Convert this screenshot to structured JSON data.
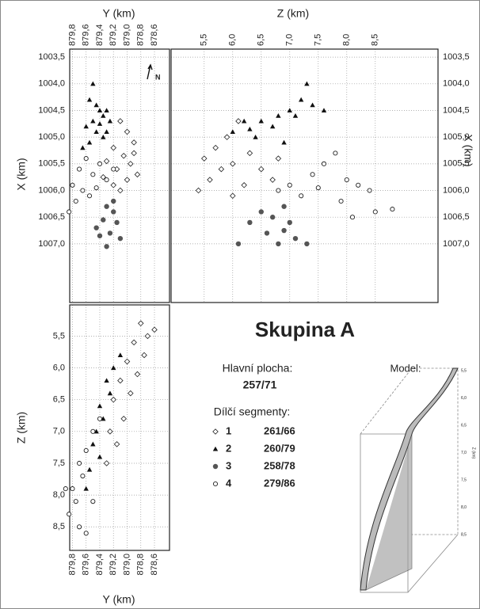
{
  "chart_data": [
    {
      "type": "scatter",
      "xlabel": "Y (km)",
      "ylabel": "X (km)",
      "north": "N",
      "xlim": [
        879.84,
        878.38
      ],
      "ylim": [
        1003.35,
        1008.1
      ],
      "xticks": [
        {
          "value": 879.8,
          "label": "879,8"
        },
        {
          "value": 879.6,
          "label": "879,6"
        },
        {
          "value": 879.4,
          "label": "879,4"
        },
        {
          "value": 879.2,
          "label": "879,2"
        },
        {
          "value": 879.0,
          "label": "879,0"
        },
        {
          "value": 878.8,
          "label": "878,8"
        },
        {
          "value": 878.6,
          "label": "878,6"
        }
      ],
      "yticks": [
        {
          "value": 1003.5,
          "label": "1003,5"
        },
        {
          "value": 1004.0,
          "label": "1004,0"
        },
        {
          "value": 1004.5,
          "label": "1004,5"
        },
        {
          "value": 1005.0,
          "label": "1005,0"
        },
        {
          "value": 1005.5,
          "label": "1005,5"
        },
        {
          "value": 1006.0,
          "label": "1006,0"
        },
        {
          "value": 1006.5,
          "label": "1006,5"
        },
        {
          "value": 1007.0,
          "label": "1007,0"
        }
      ],
      "grid": true,
      "series": [
        {
          "marker": "diamond",
          "x": [
            879.1,
            879.0,
            878.9,
            879.2,
            879.05,
            878.95,
            879.15,
            879.3,
            878.85,
            879.0,
            879.2,
            879.35,
            879.1,
            878.9
          ],
          "values": [
            1004.7,
            1004.9,
            1005.1,
            1005.2,
            1005.35,
            1005.5,
            1005.6,
            1005.45,
            1005.7,
            1005.8,
            1005.9,
            1005.75,
            1006.0,
            1005.3
          ]
        },
        {
          "marker": "triangle",
          "x": [
            879.5,
            879.55,
            879.45,
            879.4,
            879.35,
            879.3,
            879.5,
            879.6,
            879.25,
            879.45,
            879.35,
            879.55,
            879.4,
            879.3,
            879.65
          ],
          "values": [
            1004.0,
            1004.3,
            1004.4,
            1004.5,
            1004.6,
            1004.5,
            1004.7,
            1004.8,
            1004.7,
            1004.9,
            1005.0,
            1005.1,
            1004.75,
            1004.9,
            1005.2
          ]
        },
        {
          "marker": "dot",
          "x": [
            879.3,
            879.2,
            879.35,
            879.45,
            879.25,
            879.1,
            879.3,
            879.15,
            879.4,
            879.2
          ],
          "values": [
            1006.3,
            1006.4,
            1006.55,
            1006.7,
            1006.8,
            1006.9,
            1007.05,
            1006.6,
            1006.85,
            1006.2
          ]
        },
        {
          "marker": "ring",
          "x": [
            879.6,
            879.7,
            879.5,
            879.8,
            879.65,
            879.45,
            879.75,
            879.55,
            879.4,
            879.3,
            879.85,
            879.2
          ],
          "values": [
            1005.4,
            1005.6,
            1005.7,
            1005.9,
            1006.0,
            1005.95,
            1006.2,
            1006.1,
            1005.5,
            1005.8,
            1006.4,
            1005.6
          ]
        }
      ]
    },
    {
      "type": "scatter",
      "xlabel": "Z (km)",
      "ylabel": "X (km)",
      "xlim": [
        4.92,
        9.6
      ],
      "ylim": [
        1003.35,
        1008.1
      ],
      "xticks": [
        {
          "value": 5.5,
          "label": "5,5"
        },
        {
          "value": 6.0,
          "label": "6,0"
        },
        {
          "value": 6.5,
          "label": "6,5"
        },
        {
          "value": 7.0,
          "label": "7,0"
        },
        {
          "value": 7.5,
          "label": "7,5"
        },
        {
          "value": 8.0,
          "label": "8,0"
        },
        {
          "value": 8.5,
          "label": "8,5"
        }
      ],
      "yticks": [
        {
          "value": 1003.5,
          "label": "1003,5"
        },
        {
          "value": 1004.0,
          "label": "1004,0"
        },
        {
          "value": 1004.5,
          "label": "1004,5"
        },
        {
          "value": 1005.0,
          "label": "1005,0"
        },
        {
          "value": 1005.5,
          "label": "1005,5"
        },
        {
          "value": 1006.0,
          "label": "1006,0"
        },
        {
          "value": 1006.5,
          "label": "1006,5"
        },
        {
          "value": 1007.0,
          "label": "1007,0"
        }
      ],
      "grid": true,
      "series": [
        {
          "marker": "diamond",
          "x": [
            5.5,
            5.7,
            5.9,
            6.1,
            5.6,
            5.8,
            6.0,
            6.3,
            6.5,
            6.7,
            6.2,
            5.4,
            6.0,
            6.8
          ],
          "values": [
            1005.4,
            1005.2,
            1005.0,
            1004.7,
            1005.8,
            1005.6,
            1005.5,
            1005.3,
            1005.6,
            1005.8,
            1005.9,
            1006.0,
            1006.1,
            1005.4
          ]
        },
        {
          "marker": "triangle",
          "x": [
            7.3,
            7.2,
            7.0,
            6.8,
            6.5,
            6.2,
            6.0,
            6.4,
            6.7,
            7.1,
            7.4,
            6.9,
            7.6,
            6.3
          ],
          "values": [
            1004.0,
            1004.3,
            1004.5,
            1004.6,
            1004.7,
            1004.7,
            1004.9,
            1005.0,
            1004.8,
            1004.6,
            1004.4,
            1005.1,
            1004.5,
            1004.85
          ]
        },
        {
          "marker": "dot",
          "x": [
            6.5,
            6.7,
            6.9,
            7.0,
            6.3,
            6.6,
            7.1,
            6.8,
            6.1,
            7.3,
            6.9
          ],
          "values": [
            1006.4,
            1006.5,
            1006.3,
            1006.6,
            1006.6,
            1006.8,
            1006.9,
            1007.0,
            1007.0,
            1007.0,
            1006.75
          ]
        },
        {
          "marker": "ring",
          "x": [
            7.0,
            7.4,
            7.6,
            7.8,
            8.0,
            8.2,
            8.4,
            7.9,
            8.5,
            8.8,
            8.1,
            6.8,
            7.2,
            7.5
          ],
          "values": [
            1005.9,
            1005.7,
            1005.5,
            1005.3,
            1005.8,
            1005.9,
            1006.0,
            1006.2,
            1006.4,
            1006.35,
            1006.5,
            1006.0,
            1006.1,
            1005.95
          ]
        }
      ]
    },
    {
      "type": "scatter",
      "xlabel": "Y (km)",
      "ylabel": "Z (km)",
      "xlim": [
        879.84,
        878.38
      ],
      "ylim": [
        5.01,
        8.87
      ],
      "xticks": [
        {
          "value": 879.8,
          "label": "879,8"
        },
        {
          "value": 879.6,
          "label": "879,6"
        },
        {
          "value": 879.4,
          "label": "879,4"
        },
        {
          "value": 879.2,
          "label": "879,2"
        },
        {
          "value": 879.0,
          "label": "879,0"
        },
        {
          "value": 878.8,
          "label": "878,8"
        },
        {
          "value": 878.6,
          "label": "878,6"
        }
      ],
      "yticks": [
        {
          "value": 5.5,
          "label": "5,5"
        },
        {
          "value": 6.0,
          "label": "6,0"
        },
        {
          "value": 6.5,
          "label": "6,5"
        },
        {
          "value": 7.0,
          "label": "7,0"
        },
        {
          "value": 7.5,
          "label": "7,5"
        },
        {
          "value": 8.0,
          "label": "8,0"
        },
        {
          "value": 8.5,
          "label": "8,5"
        }
      ],
      "grid": true,
      "series": [
        {
          "marker": "diamond",
          "x": [
            878.8,
            878.7,
            878.9,
            878.75,
            879.0,
            878.85,
            879.1,
            878.95,
            879.2,
            879.05,
            879.25,
            879.15,
            879.3,
            878.6
          ],
          "values": [
            5.3,
            5.5,
            5.6,
            5.8,
            5.9,
            6.1,
            6.2,
            6.4,
            6.5,
            6.8,
            7.0,
            7.2,
            7.5,
            5.4
          ]
        },
        {
          "marker": "triangle",
          "x": [
            879.1,
            879.2,
            879.3,
            879.25,
            879.4,
            879.35,
            879.45,
            879.5,
            879.4,
            879.55,
            879.6
          ],
          "values": [
            5.8,
            6.0,
            6.2,
            6.4,
            6.6,
            6.8,
            7.0,
            7.2,
            7.4,
            7.6,
            7.9
          ]
        },
        {
          "marker": "ring",
          "x": [
            879.4,
            879.5,
            879.6,
            879.7,
            879.65,
            879.8,
            879.9,
            879.75,
            879.85,
            879.7,
            879.6,
            879.5
          ],
          "values": [
            6.8,
            7.0,
            7.3,
            7.5,
            7.7,
            7.9,
            7.9,
            8.1,
            8.3,
            8.5,
            8.6,
            8.1
          ]
        }
      ]
    }
  ],
  "title": "Skupina A",
  "main_plane": {
    "label": "Hlavní plocha:",
    "value": "257/71"
  },
  "segments": {
    "label": "Dílčí segmenty:",
    "items": [
      {
        "marker": "diamond",
        "name": "1",
        "value": "261/66"
      },
      {
        "marker": "triangle",
        "name": "2",
        "value": "260/79"
      },
      {
        "marker": "dot",
        "name": "3",
        "value": "258/78"
      },
      {
        "marker": "ring",
        "name": "4",
        "value": "279/86"
      }
    ]
  },
  "model": {
    "title": "Model:",
    "axis_label": "Z (km)",
    "ticks": [
      "5,5",
      "6,0",
      "6,5",
      "7,0",
      "7,5",
      "8,0",
      "8,5"
    ]
  }
}
